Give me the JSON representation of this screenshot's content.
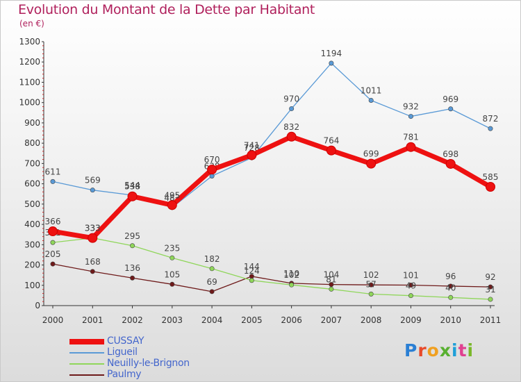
{
  "title": "Evolution du Montant de la Dette par Habitant",
  "unit": "(en €)",
  "logo": "Proxiti",
  "chart_data": {
    "type": "line",
    "title": "Evolution du Montant de la Dette par Habitant",
    "ylabel": "(en €)",
    "ylim": [
      0,
      1300
    ],
    "yticks": [
      0,
      100,
      200,
      300,
      400,
      500,
      600,
      700,
      800,
      900,
      1000,
      1100,
      1200,
      1300
    ],
    "x": [
      "2000",
      "2001",
      "2002",
      "2003",
      "2004",
      "2005",
      "2006",
      "2007",
      "2008",
      "2009",
      "2010",
      "2011"
    ],
    "grid": false,
    "legend": "bottom-left",
    "series": [
      {
        "name": "CUSSAY",
        "color": "#ee1111",
        "values": [
          366,
          333,
          538,
          495,
          670,
          741,
          832,
          764,
          699,
          781,
          698,
          585
        ],
        "labels": [
          "366",
          "333",
          "538",
          "495",
          "670",
          "741",
          "832",
          "764",
          "699",
          "781",
          "698",
          "585"
        ]
      },
      {
        "name": "Ligueil",
        "color": "#5a9ad6",
        "values": [
          611,
          569,
          544,
          483,
          638,
          728,
          970,
          1194,
          1011,
          932,
          969,
          872
        ],
        "labels": [
          "611",
          "569",
          "544",
          "483",
          "638",
          "728",
          "970",
          "1194",
          "1011",
          "932",
          "969",
          "872"
        ]
      },
      {
        "name": "Neuilly-le-Brignon",
        "color": "#8fd65a",
        "values": [
          311,
          333,
          295,
          235,
          182,
          124,
          102,
          81,
          57,
          49,
          40,
          31
        ],
        "labels": [
          "311",
          "333",
          "295",
          "235",
          "182",
          "124",
          "102",
          "81",
          "57",
          "49",
          "40",
          "31"
        ]
      },
      {
        "name": "Paulmy",
        "color": "#6e1a1a",
        "values": [
          205,
          168,
          136,
          105,
          69,
          144,
          110,
          104,
          102,
          101,
          96,
          92
        ],
        "labels": [
          "205",
          "168",
          "136",
          "105",
          "69",
          "144",
          "110",
          "104",
          "102",
          "101",
          "96",
          "92"
        ]
      }
    ]
  }
}
